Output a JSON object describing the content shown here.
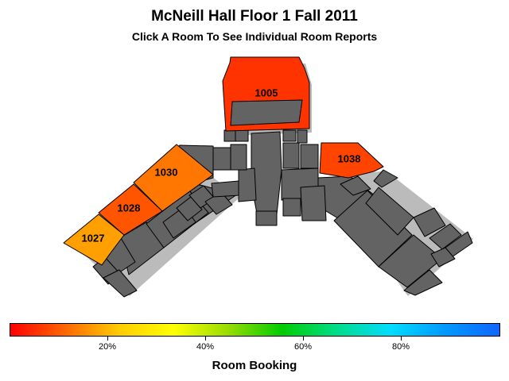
{
  "header": {
    "title": "McNeill Hall Floor 1 Fall 2011",
    "subtitle": "Click A Room To See Individual Room Reports"
  },
  "rooms": [
    {
      "id": "1005",
      "label": "1005",
      "booking": 0.08,
      "color": "#FF3300"
    },
    {
      "id": "1030",
      "label": "1030",
      "booking": 0.22,
      "color": "#FF7700"
    },
    {
      "id": "1028",
      "label": "1028",
      "booking": 0.17,
      "color": "#FF5500"
    },
    {
      "id": "1027",
      "label": "1027",
      "booking": 0.33,
      "color": "#FFA000"
    },
    {
      "id": "1038",
      "label": "1038",
      "booking": 0.12,
      "color": "#FF4400"
    }
  ],
  "legend": {
    "title": "Room Booking",
    "ticks": [
      "20%",
      "40%",
      "60%",
      "80%"
    ],
    "gradient": [
      "#ff0000",
      "#ff6600",
      "#ffcc00",
      "#ffff00",
      "#99dd00",
      "#00cc00",
      "#00dd88",
      "#00ddff",
      "#0099ff",
      "#1166ff"
    ],
    "other_room_color": "#636363",
    "background": "#ffffff"
  }
}
